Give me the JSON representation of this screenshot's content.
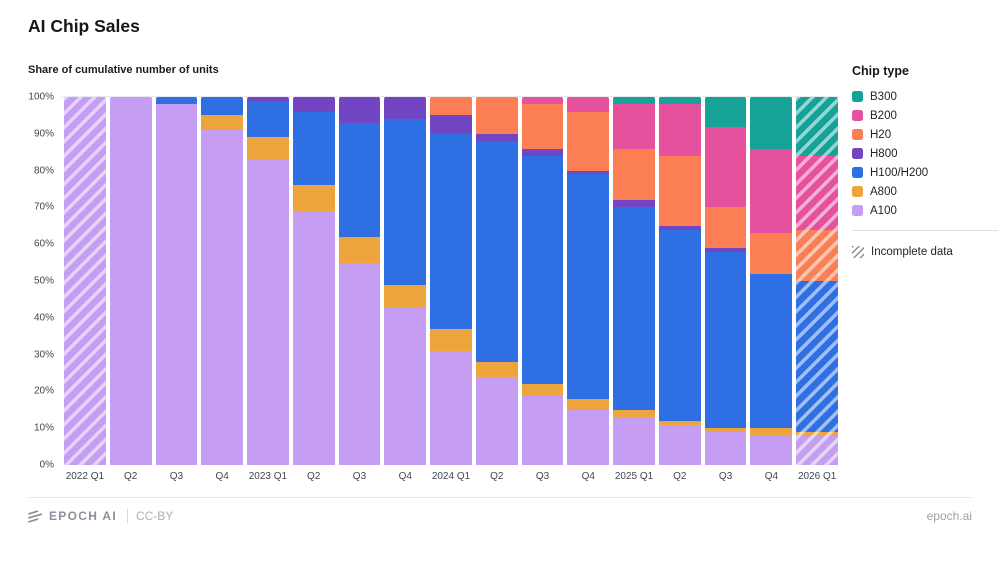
{
  "page": {
    "title": "AI Chip Sales",
    "subtitle": "Share of cumulative number of units"
  },
  "legend": {
    "title": "Chip type",
    "items": [
      {
        "label": "B300",
        "color": "#16a297"
      },
      {
        "label": "B200",
        "color": "#e6519e"
      },
      {
        "label": "H20",
        "color": "#fb7e55"
      },
      {
        "label": "H800",
        "color": "#7245c2"
      },
      {
        "label": "H100/H200",
        "color": "#2f6fe4"
      },
      {
        "label": "A800",
        "color": "#eda43c"
      },
      {
        "label": "A100",
        "color": "#c59df3"
      }
    ],
    "incomplete_label": "Incomplete data"
  },
  "footer": {
    "brand": "EPOCH AI",
    "license": "CC-BY",
    "site": "epoch.ai"
  },
  "chart_data": {
    "type": "bar",
    "subtype": "100-percent-stacked",
    "title": "AI Chip Sales",
    "subtitle": "Share of cumulative number of units",
    "ylabel": "Share of cumulative number of units",
    "ylim": [
      0,
      100
    ],
    "grid": "horizontal",
    "legend_position": "right",
    "y_ticks": [
      "0%",
      "10%",
      "20%",
      "30%",
      "40%",
      "50%",
      "60%",
      "70%",
      "80%",
      "90%",
      "100%"
    ],
    "categories": [
      "2022 Q1",
      "Q2",
      "Q3",
      "Q4",
      "2023 Q1",
      "Q2",
      "Q3",
      "Q4",
      "2024 Q1",
      "Q2",
      "Q3",
      "Q4",
      "2025 Q1",
      "Q2",
      "Q3",
      "Q4",
      "2026 Q1"
    ],
    "stack_order": "first series is bottom of stack",
    "series": [
      {
        "name": "A100",
        "color": "#c59df3",
        "values": [
          100,
          100,
          98,
          91,
          83,
          69,
          55,
          43,
          31,
          24,
          19,
          15,
          13,
          11,
          9,
          8,
          8
        ]
      },
      {
        "name": "A800",
        "color": "#eda43c",
        "values": [
          0,
          0,
          0,
          4,
          6,
          7,
          7,
          6,
          6,
          4,
          3,
          3,
          2,
          1,
          1,
          2,
          1
        ]
      },
      {
        "name": "H100/H200",
        "color": "#2f6fe4",
        "values": [
          0,
          0,
          2,
          5,
          10,
          20,
          31,
          45,
          53,
          60,
          62,
          61,
          55,
          52,
          48,
          42,
          41
        ]
      },
      {
        "name": "H800",
        "color": "#7245c2",
        "values": [
          0,
          0,
          0,
          0,
          1,
          4,
          7,
          6,
          5,
          2,
          2,
          1,
          2,
          1,
          1,
          0,
          0
        ]
      },
      {
        "name": "H20",
        "color": "#fb7e55",
        "values": [
          0,
          0,
          0,
          0,
          0,
          0,
          0,
          0,
          5,
          10,
          12,
          16,
          14,
          19,
          11,
          11,
          14
        ]
      },
      {
        "name": "B200",
        "color": "#e6519e",
        "values": [
          0,
          0,
          0,
          0,
          0,
          0,
          0,
          0,
          0,
          0,
          2,
          4,
          12,
          14,
          22,
          23,
          20
        ]
      },
      {
        "name": "B300",
        "color": "#16a297",
        "values": [
          0,
          0,
          0,
          0,
          0,
          0,
          0,
          0,
          0,
          0,
          0,
          0,
          2,
          2,
          8,
          14,
          16
        ]
      }
    ],
    "incomplete_categories": [
      "2022 Q1",
      "2026 Q1"
    ],
    "incomplete_indices": [
      0,
      16
    ]
  }
}
